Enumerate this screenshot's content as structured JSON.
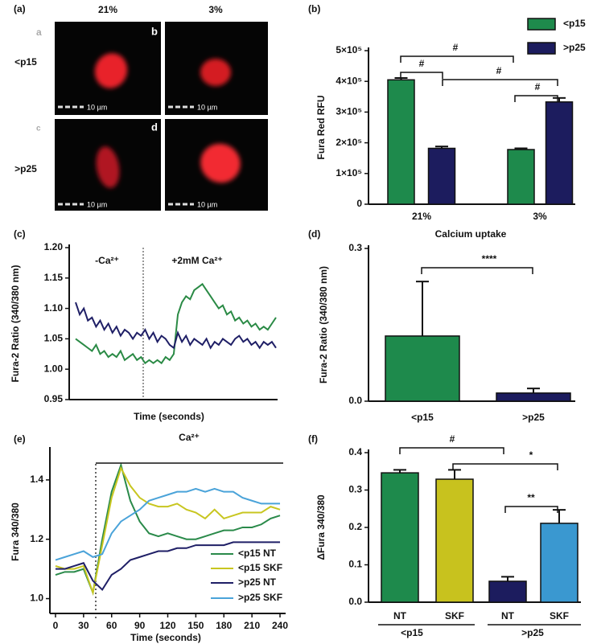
{
  "panel_a": {
    "label": "(a)",
    "columns": [
      "21%",
      "3%"
    ],
    "rows": [
      "<p15",
      ">p25"
    ],
    "image_letters": [
      "a",
      "b",
      "c",
      "d"
    ],
    "scale_bars": [
      "10 µm",
      "10 µm",
      "10 µm",
      "10 µm"
    ]
  },
  "chart_data": [
    {
      "type": "bar",
      "label": "(b)",
      "y_label": "Fura Red RFU",
      "x_label": "Calcium uptake",
      "categories": [
        "21%",
        "3%"
      ],
      "series": [
        {
          "name": "<p15",
          "color": "#1e8a4c",
          "values": [
            405000,
            178000
          ],
          "errors": [
            6000,
            4000
          ]
        },
        {
          "name": ">p25",
          "color": "#1c1c5e",
          "values": [
            182000,
            333000
          ],
          "errors": [
            6000,
            13000
          ]
        }
      ],
      "ylim": [
        0,
        500000
      ],
      "yticks": [
        0,
        {
          "value": 100000,
          "label": "1×10⁵"
        },
        {
          "value": 200000,
          "label": "2×10⁵"
        },
        {
          "value": 300000,
          "label": "3×10⁵"
        },
        {
          "value": 400000,
          "label": "4×10⁵"
        },
        {
          "value": 500000,
          "label": "5×10⁵"
        }
      ],
      "annotations": [
        "#",
        "#",
        "#",
        "#"
      ],
      "legend": "top-right"
    },
    {
      "type": "line",
      "label": "(c)",
      "y_label": "Fura-2 Ratio (340/380 nm)",
      "x_label": "Time (seconds)",
      "series": [
        {
          "color": "#2a8a45",
          "values": [
            1.05,
            1.045,
            1.04,
            1.035,
            1.03,
            1.04,
            1.025,
            1.03,
            1.02,
            1.025,
            1.02,
            1.03,
            1.015,
            1.02,
            1.025,
            1.015,
            1.02,
            1.01,
            1.015,
            1.01,
            1.015,
            1.01,
            1.02,
            1.015,
            1.025,
            1.09,
            1.11,
            1.12,
            1.115,
            1.13,
            1.135,
            1.14,
            1.13,
            1.12,
            1.11,
            1.1,
            1.105,
            1.09,
            1.095,
            1.08,
            1.085,
            1.075,
            1.08,
            1.07,
            1.075,
            1.065,
            1.07,
            1.065,
            1.075,
            1.085
          ]
        },
        {
          "color": "#1f1f66",
          "values": [
            1.11,
            1.09,
            1.1,
            1.08,
            1.085,
            1.07,
            1.08,
            1.065,
            1.075,
            1.06,
            1.07,
            1.055,
            1.065,
            1.06,
            1.05,
            1.06,
            1.055,
            1.065,
            1.05,
            1.06,
            1.045,
            1.055,
            1.05,
            1.04,
            1.035,
            1.06,
            1.045,
            1.055,
            1.04,
            1.05,
            1.045,
            1.04,
            1.05,
            1.035,
            1.045,
            1.04,
            1.05,
            1.045,
            1.04,
            1.05,
            1.055,
            1.045,
            1.05,
            1.04,
            1.045,
            1.035,
            1.045,
            1.04,
            1.045,
            1.035
          ]
        }
      ],
      "ylim": [
        0.95,
        1.2
      ],
      "yticks": [
        {
          "value": 0.95,
          "label": "0.95"
        },
        {
          "value": 1.0,
          "label": "1.00"
        },
        {
          "value": 1.05,
          "label": "1.05"
        },
        {
          "value": 1.1,
          "label": "1.10"
        },
        {
          "value": 1.15,
          "label": "1.15"
        },
        {
          "value": 1.2,
          "label": "1.20"
        }
      ],
      "annotations": [
        "-Ca²⁺",
        "+2mM Ca²⁺"
      ]
    },
    {
      "type": "bar",
      "label": "(d)",
      "y_label": "Fura-2 Ratio (340/380 nm)",
      "categories": [
        "<p15",
        ">p25"
      ],
      "values": [
        0.128,
        0.016
      ],
      "errors": [
        0.107,
        0.009
      ],
      "colors": [
        "#1e8a4c",
        "#1c1c5e"
      ],
      "ylim": [
        0,
        0.3
      ],
      "yticks": [
        {
          "value": 0,
          "label": "0.0"
        },
        0.3
      ],
      "annotations": [
        "****"
      ]
    },
    {
      "type": "line",
      "label": "(e)",
      "y_label": "Fura 340/380",
      "x_label": "Time (seconds)",
      "x": [
        0,
        10,
        20,
        30,
        40,
        50,
        60,
        70,
        80,
        90,
        100,
        110,
        120,
        130,
        140,
        150,
        160,
        170,
        180,
        190,
        200,
        210,
        220,
        230,
        240
      ],
      "series": [
        {
          "name": "<p15 NT",
          "color": "#2a8a4a",
          "values": [
            1.08,
            1.09,
            1.09,
            1.1,
            1.02,
            1.2,
            1.36,
            1.45,
            1.33,
            1.26,
            1.22,
            1.21,
            1.22,
            1.21,
            1.2,
            1.2,
            1.21,
            1.22,
            1.23,
            1.23,
            1.24,
            1.24,
            1.25,
            1.27,
            1.28
          ]
        },
        {
          "name": "<p15 SKF",
          "color": "#c8c620",
          "values": [
            1.11,
            1.1,
            1.1,
            1.11,
            1.02,
            1.18,
            1.34,
            1.44,
            1.38,
            1.34,
            1.32,
            1.31,
            1.31,
            1.32,
            1.3,
            1.29,
            1.27,
            1.3,
            1.27,
            1.28,
            1.29,
            1.29,
            1.29,
            1.31,
            1.3
          ]
        },
        {
          "name": ">p25 NT",
          "color": "#1f1f66",
          "values": [
            1.1,
            1.1,
            1.11,
            1.12,
            1.06,
            1.03,
            1.08,
            1.1,
            1.13,
            1.14,
            1.15,
            1.16,
            1.16,
            1.17,
            1.17,
            1.18,
            1.18,
            1.18,
            1.18,
            1.19,
            1.19,
            1.19,
            1.19,
            1.19,
            1.19
          ]
        },
        {
          "name": ">p25 SKF",
          "color": "#4aa3d9",
          "values": [
            1.13,
            1.14,
            1.15,
            1.16,
            1.14,
            1.15,
            1.22,
            1.26,
            1.28,
            1.3,
            1.33,
            1.34,
            1.35,
            1.36,
            1.36,
            1.37,
            1.36,
            1.37,
            1.36,
            1.36,
            1.34,
            1.33,
            1.32,
            1.32,
            1.32
          ]
        }
      ],
      "xlim": [
        -6,
        246
      ],
      "xticks": [
        0,
        30,
        60,
        90,
        120,
        150,
        180,
        210,
        240
      ],
      "ylim": [
        0.95,
        1.5
      ],
      "yticks": [
        {
          "value": 1.0,
          "label": "1.0"
        },
        1.2,
        1.4
      ],
      "annotations": [
        "Ca²⁺"
      ],
      "legend": "bottom-right"
    },
    {
      "type": "bar",
      "label": "(f)",
      "y_label": "ΔFura 340/380",
      "categories": [
        "NT",
        "SKF",
        "NT",
        "SKF"
      ],
      "groups": [
        "<p15",
        ">p25"
      ],
      "values": [
        0.346,
        0.329,
        0.056,
        0.211
      ],
      "errors": [
        0.008,
        0.025,
        0.012,
        0.036
      ],
      "colors": [
        "#1e8a4c",
        "#c8c21e",
        "#1c1c5e",
        "#3a98d0"
      ],
      "ylim": [
        0,
        0.4
      ],
      "yticks": [
        {
          "value": 0,
          "label": "0.0"
        },
        0.1,
        0.2,
        0.3,
        0.4
      ],
      "annotations": [
        "#",
        "*",
        "**"
      ]
    }
  ]
}
